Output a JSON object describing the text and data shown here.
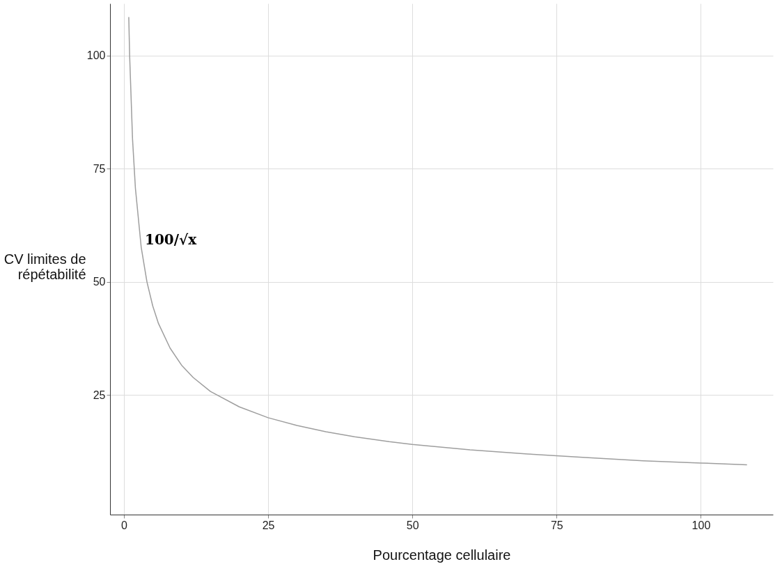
{
  "chart_data": {
    "type": "line",
    "xlabel": "Pourcentage cellulaire",
    "ylabel": "CV limites de répétabilité",
    "x": [
      0.85,
      1,
      1.5,
      2,
      3,
      4,
      5,
      6,
      8,
      10,
      12,
      15,
      20,
      25,
      30,
      35,
      40,
      46,
      50,
      60,
      70,
      80,
      90,
      100,
      108
    ],
    "series": [
      {
        "color": "#9e9e9e",
        "values": [
          108.5,
          100,
          81.6,
          70.7,
          57.7,
          50,
          44.7,
          40.8,
          35.4,
          31.6,
          28.9,
          25.8,
          22.4,
          20,
          18.3,
          16.9,
          15.8,
          14.7,
          14.1,
          12.9,
          12,
          11.2,
          10.5,
          10,
          9.6
        ]
      }
    ],
    "xlim": [
      -2.4,
      112.5
    ],
    "ylim": [
      -1.4,
      111.5
    ],
    "xticks": [
      0,
      25,
      50,
      75,
      100
    ],
    "yticks": [
      25,
      50,
      75,
      100
    ],
    "annotations": [
      "100/√x"
    ],
    "grid": true,
    "marker": "none",
    "line_style": "solid"
  }
}
